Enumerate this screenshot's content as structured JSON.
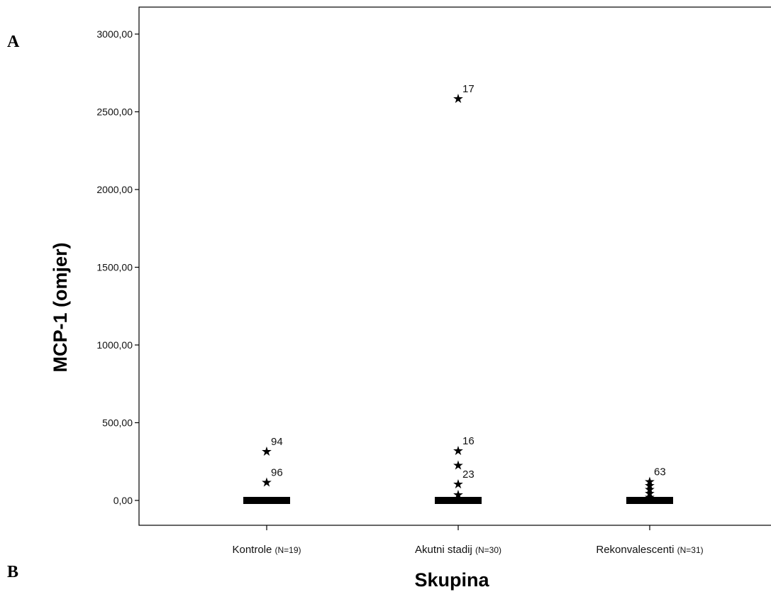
{
  "panel_labels": {
    "top": "A",
    "bottom": "B"
  },
  "chart_data": {
    "type": "box",
    "xlabel": "Skupina",
    "ylabel": "MCP-1 (omjer)",
    "ylim": [
      -160,
      3160
    ],
    "yticks": [
      {
        "value": 0,
        "label": "0,00"
      },
      {
        "value": 500,
        "label": "500,00"
      },
      {
        "value": 1000,
        "label": "1000,00"
      },
      {
        "value": 1500,
        "label": "1500,00"
      },
      {
        "value": 2000,
        "label": "2000,00"
      },
      {
        "value": 2500,
        "label": "2500,00"
      },
      {
        "value": 3000,
        "label": "3000,00"
      }
    ],
    "grid": false,
    "groups": [
      {
        "name": "Kontrole",
        "n": "(N=19)",
        "box": {
          "q1": 0,
          "median": 0,
          "q3": 0
        },
        "outliers": [
          {
            "value": 320,
            "label": "94"
          },
          {
            "value": 120,
            "label": "96"
          }
        ]
      },
      {
        "name": "Akutni stadij",
        "n": "(N=30)",
        "box": {
          "q1": 0,
          "median": 0,
          "q3": 0
        },
        "outliers": [
          {
            "value": 2590,
            "label": "17"
          },
          {
            "value": 325,
            "label": "16"
          },
          {
            "value": 230,
            "label": ""
          },
          {
            "value": 110,
            "label": "23"
          },
          {
            "value": 40,
            "label": ""
          }
        ]
      },
      {
        "name": "Rekonvalescenti",
        "n": "(N=31)",
        "box": {
          "q1": 0,
          "median": 0,
          "q3": 0
        },
        "outliers": [
          {
            "value": 125,
            "label": "63"
          },
          {
            "value": 100,
            "label": ""
          },
          {
            "value": 75,
            "label": ""
          },
          {
            "value": 50,
            "label": ""
          },
          {
            "value": 25,
            "label": ""
          }
        ]
      }
    ]
  }
}
